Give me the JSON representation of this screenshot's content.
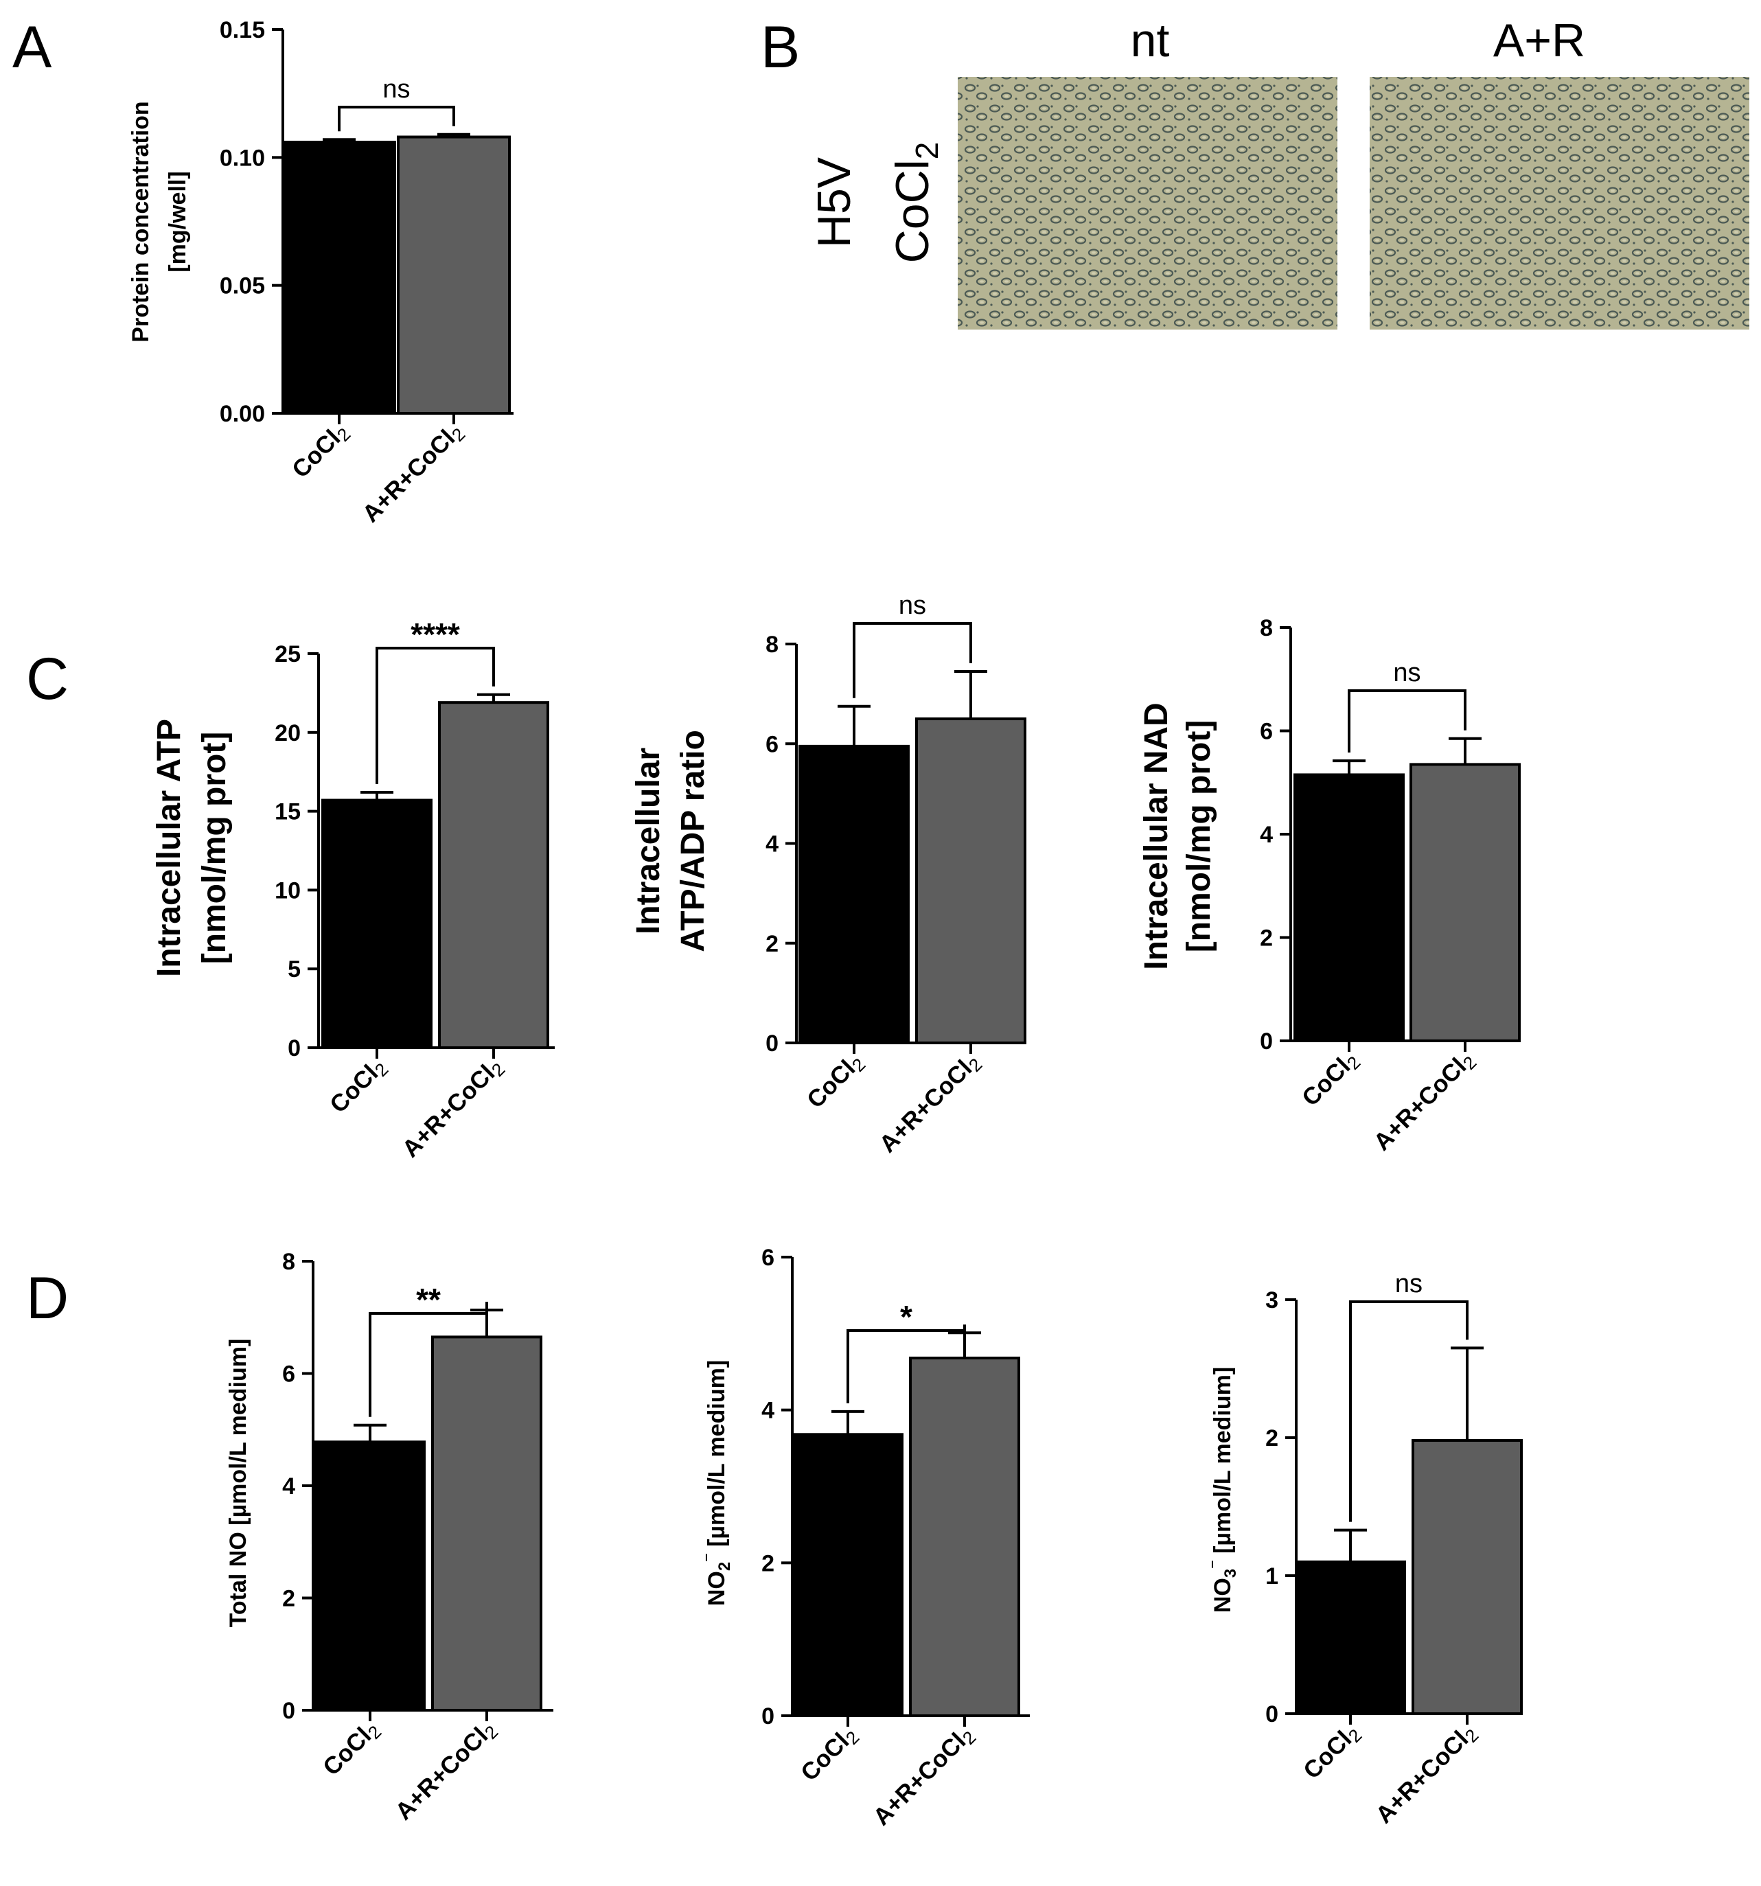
{
  "panels": {
    "A": "A",
    "B": "B",
    "C": "C",
    "D": "D"
  },
  "micrographs": {
    "row_label": [
      "H5V",
      "CoCl",
      "2"
    ],
    "columns": [
      "nt",
      "A+R"
    ],
    "colors": {
      "background": "#b5b493",
      "cell_dark": "#4c5a54",
      "cell_light": "#cfcdb0"
    }
  },
  "colors": {
    "bar_1": "#000000",
    "bar_2": "#5e5e5e",
    "axis": "#000000"
  },
  "chart_data": [
    {
      "panel": "A",
      "type": "bar",
      "categories": [
        "CoCl2",
        "A+R+CoCl2"
      ],
      "values": [
        0.106,
        0.108
      ],
      "errors": [
        0.001,
        0.001
      ],
      "ylabel": [
        "Protein concentration",
        "[mg/well]"
      ],
      "ylim": [
        0,
        0.15
      ],
      "yticks": [
        "0.00",
        "0.05",
        "0.10",
        "0.15"
      ],
      "significance": "ns"
    },
    {
      "panel": "C",
      "type": "bar",
      "categories": [
        "CoCl2",
        "A+R+CoCl2"
      ],
      "values": [
        15.7,
        21.9
      ],
      "errors": [
        0.5,
        0.5
      ],
      "ylabel": [
        "Intracellular ATP",
        "[nmol/mg prot]"
      ],
      "ylim": [
        0,
        25
      ],
      "yticks": [
        "0",
        "5",
        "10",
        "15",
        "20",
        "25"
      ],
      "significance": "****"
    },
    {
      "panel": "C",
      "type": "bar",
      "categories": [
        "CoCl2",
        "A+R+CoCl2"
      ],
      "values": [
        5.95,
        6.5
      ],
      "errors": [
        0.8,
        0.95
      ],
      "ylabel": [
        "Intracellular",
        "ATP/ADP ratio"
      ],
      "ylim": [
        0,
        8
      ],
      "yticks": [
        "0",
        "2",
        "4",
        "6",
        "8"
      ],
      "significance": "ns"
    },
    {
      "panel": "C",
      "type": "bar",
      "categories": [
        "CoCl2",
        "A+R+CoCl2"
      ],
      "values": [
        5.15,
        5.35
      ],
      "errors": [
        0.27,
        0.5
      ],
      "ylabel": [
        "Intracellular NAD",
        "[nmol/mg prot]"
      ],
      "ylim": [
        0,
        8
      ],
      "yticks": [
        "0",
        "2",
        "4",
        "6",
        "8"
      ],
      "significance": "ns"
    },
    {
      "panel": "D",
      "type": "bar",
      "categories": [
        "CoCl2",
        "A+R+CoCl2"
      ],
      "values": [
        4.78,
        6.65
      ],
      "errors": [
        0.3,
        0.48
      ],
      "ylabel": [
        "Total NO [µmol/L medium]"
      ],
      "ylim": [
        0,
        8
      ],
      "yticks": [
        "0",
        "2",
        "4",
        "6",
        "8"
      ],
      "significance": "**"
    },
    {
      "panel": "D",
      "type": "bar",
      "categories": [
        "CoCl2",
        "A+R+CoCl2"
      ],
      "values": [
        3.68,
        4.68
      ],
      "errors": [
        0.3,
        0.33
      ],
      "ylabel": [
        "NO2⁻ [µmol/L medium]"
      ],
      "ylim": [
        0,
        6
      ],
      "yticks": [
        "0",
        "2",
        "4",
        "6"
      ],
      "significance": "*"
    },
    {
      "panel": "D",
      "type": "bar",
      "categories": [
        "CoCl2",
        "A+R+CoCl2"
      ],
      "values": [
        1.1,
        1.98
      ],
      "errors": [
        0.23,
        0.67
      ],
      "ylabel": [
        "NO3⁻ [µmol/L medium]"
      ],
      "ylim": [
        0,
        3
      ],
      "yticks": [
        "0",
        "1",
        "2",
        "3"
      ],
      "significance": "ns"
    }
  ]
}
